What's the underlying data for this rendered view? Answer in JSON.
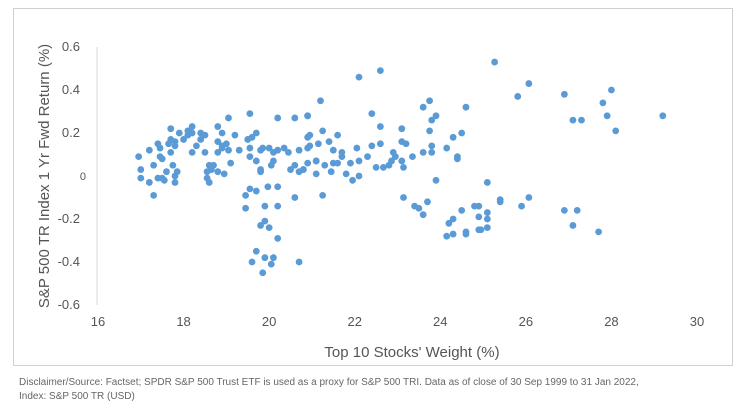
{
  "chart_data": {
    "type": "scatter",
    "title": "",
    "xlabel": "Top 10 Stocks' Weight (%)",
    "ylabel": "S&P 500 TR Index 1 Yr Fwd  Return (%)",
    "xlim": [
      16,
      30
    ],
    "ylim": [
      -0.6,
      0.6
    ],
    "xticks": [
      "16",
      "18",
      "20",
      "22",
      "24",
      "26",
      "28",
      "30"
    ],
    "yticks": [
      "0.6",
      "0.4",
      "0.2",
      "0",
      "-0.2",
      "-0.4",
      "-0.6"
    ],
    "grid": false,
    "color": "#5b9bd5",
    "points": [
      [
        25.27,
        0.53
      ],
      [
        26.07,
        0.43
      ],
      [
        25.81,
        0.37
      ],
      [
        26.9,
        0.38
      ],
      [
        28.0,
        0.4
      ],
      [
        27.8,
        0.34
      ],
      [
        27.1,
        0.26
      ],
      [
        27.3,
        0.26
      ],
      [
        27.9,
        0.28
      ],
      [
        28.1,
        0.21
      ],
      [
        29.2,
        0.28
      ],
      [
        25.4,
        -0.11
      ],
      [
        25.4,
        -0.12
      ],
      [
        26.07,
        -0.1
      ],
      [
        25.9,
        -0.14
      ],
      [
        26.9,
        -0.16
      ],
      [
        27.2,
        -0.16
      ],
      [
        27.1,
        -0.23
      ],
      [
        27.7,
        -0.26
      ],
      [
        22.1,
        0.46
      ],
      [
        22.6,
        0.49
      ],
      [
        21.2,
        0.35
      ],
      [
        20.9,
        0.28
      ],
      [
        22.4,
        0.29
      ],
      [
        23.75,
        0.35
      ],
      [
        23.6,
        0.32
      ],
      [
        23.9,
        0.28
      ],
      [
        23.8,
        0.26
      ],
      [
        24.6,
        0.32
      ],
      [
        22.6,
        0.23
      ],
      [
        23.1,
        0.22
      ],
      [
        23.75,
        0.21
      ],
      [
        24.5,
        0.2
      ],
      [
        24.3,
        0.18
      ],
      [
        21.25,
        0.21
      ],
      [
        21.6,
        0.19
      ],
      [
        20.9,
        0.18
      ],
      [
        21.4,
        0.16
      ],
      [
        21.15,
        0.15
      ],
      [
        22.6,
        0.15
      ],
      [
        23.1,
        0.16
      ],
      [
        23.2,
        0.15
      ],
      [
        23.8,
        0.14
      ],
      [
        22.4,
        0.14
      ],
      [
        22.05,
        0.13
      ],
      [
        24.15,
        0.13
      ],
      [
        20.9,
        0.13
      ],
      [
        21.5,
        0.12
      ],
      [
        21.7,
        0.11
      ],
      [
        22.3,
        0.09
      ],
      [
        24.4,
        0.09
      ],
      [
        24.4,
        0.08
      ],
      [
        23.6,
        0.11
      ],
      [
        23.8,
        0.11
      ],
      [
        23.35,
        0.09
      ],
      [
        22.9,
        0.11
      ],
      [
        22.95,
        0.09
      ],
      [
        22.86,
        0.07
      ],
      [
        23.1,
        0.07
      ],
      [
        23.14,
        0.04
      ],
      [
        22.8,
        0.05
      ],
      [
        22.67,
        0.04
      ],
      [
        22.5,
        0.04
      ],
      [
        22.1,
        0.07
      ],
      [
        21.9,
        0.06
      ],
      [
        21.7,
        0.09
      ],
      [
        21.6,
        0.06
      ],
      [
        21.5,
        0.06
      ],
      [
        21.3,
        0.05
      ],
      [
        21.1,
        0.07
      ],
      [
        20.9,
        0.06
      ],
      [
        21.45,
        0.02
      ],
      [
        21.1,
        0.01
      ],
      [
        21.8,
        0.01
      ],
      [
        22.1,
        0.0
      ],
      [
        21.95,
        -0.02
      ],
      [
        23.9,
        -0.02
      ],
      [
        21.25,
        -0.09
      ],
      [
        23.14,
        -0.1
      ],
      [
        23.7,
        -0.12
      ],
      [
        23.4,
        -0.14
      ],
      [
        23.5,
        -0.15
      ],
      [
        23.6,
        -0.18
      ],
      [
        24.5,
        -0.16
      ],
      [
        24.8,
        -0.14
      ],
      [
        24.9,
        -0.14
      ],
      [
        24.9,
        -0.19
      ],
      [
        25.1,
        -0.17
      ],
      [
        25.1,
        -0.2
      ],
      [
        25.1,
        -0.03
      ],
      [
        24.3,
        -0.2
      ],
      [
        24.2,
        -0.22
      ],
      [
        24.3,
        -0.27
      ],
      [
        24.15,
        -0.28
      ],
      [
        24.6,
        -0.26
      ],
      [
        24.6,
        -0.27
      ],
      [
        24.9,
        -0.25
      ],
      [
        24.95,
        -0.25
      ],
      [
        25.1,
        -0.24
      ],
      [
        20.8,
        0.03
      ],
      [
        16.95,
        0.09
      ],
      [
        17.2,
        0.12
      ],
      [
        17.0,
        0.03
      ],
      [
        17.0,
        -0.01
      ],
      [
        17.2,
        -0.03
      ],
      [
        17.3,
        -0.09
      ],
      [
        17.3,
        0.05
      ],
      [
        17.4,
        -0.01
      ],
      [
        17.5,
        -0.01
      ],
      [
        17.55,
        -0.02
      ],
      [
        17.6,
        0.02
      ],
      [
        17.75,
        0.05
      ],
      [
        17.8,
        0.0
      ],
      [
        17.85,
        0.02
      ],
      [
        17.8,
        -0.03
      ],
      [
        17.45,
        0.09
      ],
      [
        17.5,
        0.08
      ],
      [
        17.7,
        0.11
      ],
      [
        17.4,
        0.15
      ],
      [
        17.45,
        0.13
      ],
      [
        17.65,
        0.15
      ],
      [
        17.7,
        0.17
      ],
      [
        17.8,
        0.16
      ],
      [
        17.8,
        0.14
      ],
      [
        17.7,
        0.22
      ],
      [
        17.9,
        0.2
      ],
      [
        18.0,
        0.17
      ],
      [
        18.2,
        0.11
      ],
      [
        18.1,
        0.19
      ],
      [
        18.1,
        0.21
      ],
      [
        18.2,
        0.23
      ],
      [
        18.2,
        0.2
      ],
      [
        18.3,
        0.14
      ],
      [
        18.4,
        0.2
      ],
      [
        18.5,
        0.19
      ],
      [
        18.4,
        0.17
      ],
      [
        18.5,
        0.11
      ],
      [
        18.8,
        0.23
      ],
      [
        18.8,
        0.16
      ],
      [
        18.9,
        0.2
      ],
      [
        18.9,
        0.14
      ],
      [
        19.0,
        0.15
      ],
      [
        19.05,
        0.12
      ],
      [
        18.8,
        0.11
      ],
      [
        18.9,
        0.13
      ],
      [
        19.2,
        0.19
      ],
      [
        19.05,
        0.27
      ],
      [
        19.55,
        0.29
      ],
      [
        20.2,
        0.27
      ],
      [
        20.6,
        0.27
      ],
      [
        20.9,
        0.28
      ],
      [
        19.1,
        0.06
      ],
      [
        18.6,
        0.05
      ],
      [
        18.7,
        0.05
      ],
      [
        18.55,
        0.02
      ],
      [
        18.65,
        0.03
      ],
      [
        18.8,
        0.02
      ],
      [
        18.95,
        0.01
      ],
      [
        18.55,
        -0.01
      ],
      [
        18.6,
        -0.03
      ],
      [
        19.3,
        0.12
      ],
      [
        19.5,
        0.17
      ],
      [
        19.6,
        0.18
      ],
      [
        19.7,
        0.2
      ],
      [
        19.55,
        0.13
      ],
      [
        19.55,
        0.09
      ],
      [
        19.7,
        0.07
      ],
      [
        19.8,
        0.12
      ],
      [
        19.85,
        0.13
      ],
      [
        20.0,
        0.13
      ],
      [
        20.1,
        0.11
      ],
      [
        20.2,
        0.12
      ],
      [
        20.35,
        0.13
      ],
      [
        20.45,
        0.11
      ],
      [
        20.1,
        0.07
      ],
      [
        20.05,
        0.05
      ],
      [
        19.8,
        0.03
      ],
      [
        19.8,
        0.02
      ],
      [
        20.5,
        0.03
      ],
      [
        20.6,
        0.05
      ],
      [
        20.7,
        0.02
      ],
      [
        20.8,
        0.03
      ],
      [
        20.7,
        0.12
      ],
      [
        20.95,
        0.19
      ],
      [
        20.95,
        0.14
      ],
      [
        21.1,
        0.07
      ],
      [
        19.55,
        -0.06
      ],
      [
        19.45,
        -0.09
      ],
      [
        19.7,
        -0.07
      ],
      [
        19.97,
        -0.05
      ],
      [
        20.2,
        -0.05
      ],
      [
        20.6,
        -0.1
      ],
      [
        19.45,
        -0.15
      ],
      [
        19.9,
        -0.14
      ],
      [
        20.2,
        -0.14
      ],
      [
        19.9,
        -0.21
      ],
      [
        19.8,
        -0.23
      ],
      [
        20.0,
        -0.24
      ],
      [
        20.2,
        -0.29
      ],
      [
        19.7,
        -0.35
      ],
      [
        19.6,
        -0.4
      ],
      [
        19.9,
        -0.38
      ],
      [
        20.1,
        -0.38
      ],
      [
        20.05,
        -0.41
      ],
      [
        19.85,
        -0.45
      ],
      [
        20.7,
        -0.4
      ]
    ]
  },
  "footer": {
    "line1": "Disclaimer/Source: Factset; SPDR S&P 500 Trust ETF is used as a proxy for S&P 500 TRI. Data as of close of 30 Sep 1999 to 31 Jan 2022,",
    "line2": "Index: S&P 500 TR (USD)"
  }
}
